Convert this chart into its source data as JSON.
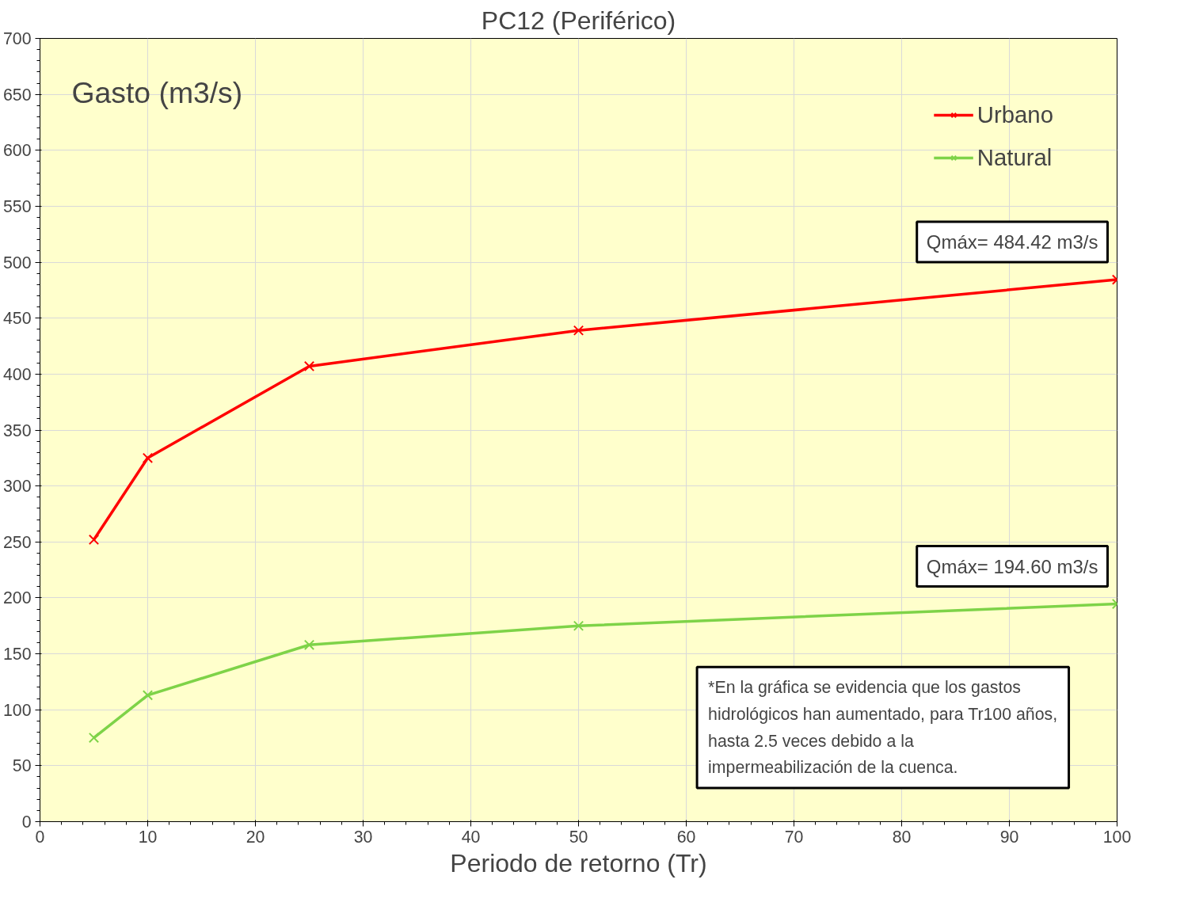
{
  "chart_data": {
    "type": "line",
    "title": "PC12 (Periférico)",
    "xlabel": "Periodo de retorno (Tr)",
    "ylabel": "Gasto (m3/s)",
    "x": [
      5,
      10,
      25,
      50,
      100
    ],
    "series": [
      {
        "name": "Urbano",
        "color": "#ff0000",
        "values": [
          252,
          325,
          407,
          439,
          484.42
        ]
      },
      {
        "name": "Natural",
        "color": "#7ed348",
        "values": [
          75,
          113,
          158,
          175,
          194.6
        ]
      }
    ],
    "xlim": [
      0,
      100
    ],
    "xticks": [
      0,
      10,
      20,
      30,
      40,
      50,
      60,
      70,
      80,
      90,
      100
    ],
    "ylim": [
      0,
      700
    ],
    "yticks": [
      0,
      50,
      100,
      150,
      200,
      250,
      300,
      350,
      400,
      450,
      500,
      550,
      600,
      650,
      700
    ],
    "grid": true,
    "legend": "top right",
    "marker": "cross",
    "line_style": "solid",
    "annotations": [
      {
        "text": "Qmáx= 484.42 m3/s",
        "x": 100,
        "y": 484.42
      },
      {
        "text": "Qmáx= 194.60 m3/s",
        "x": 100,
        "y": 194.6
      },
      "*En la gráfica se evidencia que los gastos hidrológicos han aumentado, para Tr100 años, hasta 2.5 veces debido a la impermeabilización de la cuenca."
    ]
  }
}
